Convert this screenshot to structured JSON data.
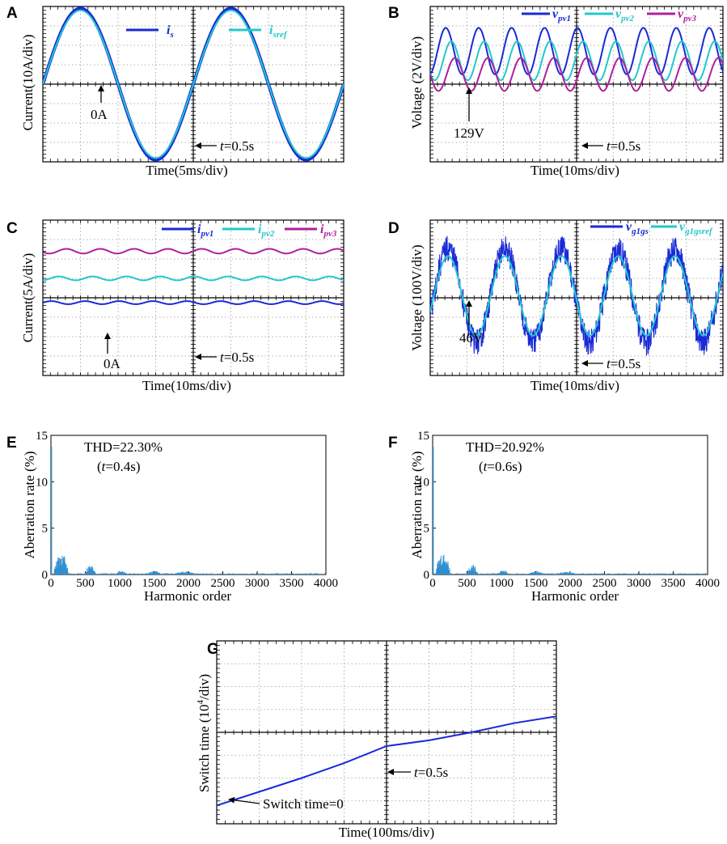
{
  "panel_labels": {
    "a": "A",
    "b": "B",
    "c": "C",
    "d": "D",
    "e": "E",
    "f": "F",
    "g": "G"
  },
  "colors": {
    "dark_blue": "#1a2ad6",
    "cyan": "#22c8cc",
    "magenta": "#b0209c",
    "bar_blue": "#2f8fd0",
    "fill_blue": "#5b9fe0"
  },
  "chart_data": [
    {
      "id": "A",
      "type": "line",
      "title": "",
      "xlabel": "Time(5ms/div)",
      "ylabel": "Current(10A/div)",
      "divisions_x": 8,
      "divisions_y": 8,
      "x_unit": "div",
      "y_unit": "div",
      "series": [
        {
          "name": "i_s",
          "legend_main": "i",
          "legend_sub": "s",
          "color": "#1a2ad6",
          "waveform": "sine",
          "amplitude_div": 3.9,
          "offset_div": 0,
          "period_div": 4,
          "phase_div": 0
        },
        {
          "name": "i_sref",
          "legend_main": "i",
          "legend_sub": "sref",
          "color": "#22c8cc",
          "waveform": "sine",
          "amplitude_div": 3.8,
          "offset_div": 0,
          "period_div": 4,
          "phase_div": 0
        }
      ],
      "annotations": [
        {
          "text": "0A",
          "kind": "zero_marker"
        },
        {
          "text_prefix": "t",
          "text_suffix": "=0.5s",
          "kind": "time_marker"
        }
      ]
    },
    {
      "id": "B",
      "type": "line",
      "xlabel": "Time(10ms/div)",
      "ylabel": "Voltage (2V/div)",
      "divisions_x": 8,
      "divisions_y": 8,
      "series": [
        {
          "name": "v_pv1",
          "legend_main": "v",
          "legend_sub": "pv1",
          "color": "#1a2ad6",
          "waveform": "sine",
          "amplitude_div": 1.2,
          "offset_div": 1.7,
          "period_div": 0.9,
          "phase_div": 0.2
        },
        {
          "name": "v_pv2",
          "legend_main": "v",
          "legend_sub": "pv2",
          "color": "#22c8cc",
          "waveform": "sine",
          "amplitude_div": 1.0,
          "offset_div": 1.2,
          "period_div": 0.9,
          "phase_div": 0.35
        },
        {
          "name": "v_pv3",
          "legend_main": "v",
          "legend_sub": "pv3",
          "color": "#b0209c",
          "waveform": "sine",
          "amplitude_div": 0.85,
          "offset_div": 0.5,
          "period_div": 0.9,
          "phase_div": 0.45
        }
      ],
      "annotations": [
        {
          "text": "129V",
          "kind": "zero_marker"
        },
        {
          "text_prefix": "t",
          "text_suffix": "=0.5s",
          "kind": "time_marker"
        }
      ]
    },
    {
      "id": "C",
      "type": "line",
      "xlabel": "Time(10ms/div)",
      "ylabel": "Current(5A/div)",
      "divisions_x": 8,
      "divisions_y": 8,
      "series": [
        {
          "name": "i_pv1",
          "legend_main": "i",
          "legend_sub": "pv1",
          "color": "#1a2ad6",
          "waveform": "sine",
          "amplitude_div": 0.08,
          "offset_div": -0.25,
          "period_div": 0.9,
          "phase_div": 0
        },
        {
          "name": "i_pv2",
          "legend_main": "i",
          "legend_sub": "pv2",
          "color": "#22c8cc",
          "waveform": "sine",
          "amplitude_div": 0.1,
          "offset_div": 1.0,
          "period_div": 0.9,
          "phase_div": 0.2
        },
        {
          "name": "i_pv3",
          "legend_main": "i",
          "legend_sub": "pv3",
          "color": "#b0209c",
          "waveform": "sine",
          "amplitude_div": 0.12,
          "offset_div": 2.4,
          "period_div": 0.9,
          "phase_div": 0.4
        }
      ],
      "annotations": [
        {
          "text": "0A",
          "kind": "zero_marker"
        },
        {
          "text_prefix": "t",
          "text_suffix": "=0.5s",
          "kind": "time_marker"
        }
      ]
    },
    {
      "id": "D",
      "type": "line",
      "xlabel": "Time(10ms/div)",
      "ylabel": "Voltage (100V/div)",
      "divisions_x": 8,
      "divisions_y": 8,
      "series": [
        {
          "name": "v_g1gs",
          "legend_main": "v",
          "legend_sub": "g1gs",
          "color": "#1a2ad6",
          "waveform": "noisy_sine",
          "amplitude_div": 2.4,
          "offset_div": 0.1,
          "period_div": 1.55,
          "phase_div": 0.1
        },
        {
          "name": "v_g1gsref",
          "legend_main": "v",
          "legend_sub": "g1gsref",
          "color": "#22c8cc",
          "waveform": "sine",
          "amplitude_div": 2.05,
          "offset_div": 0.1,
          "period_div": 1.55,
          "phase_div": 0.1
        }
      ],
      "annotations": [
        {
          "text": "46V",
          "kind": "zero_marker"
        },
        {
          "text_prefix": "t",
          "text_suffix": "=0.5s",
          "kind": "time_marker"
        }
      ]
    },
    {
      "id": "E",
      "type": "bar",
      "xlabel": "Harmonic order",
      "ylabel": "Aberration rate (%)",
      "xlim": [
        0,
        4000
      ],
      "ylim": [
        0,
        15
      ],
      "xticks": [
        0,
        500,
        1000,
        1500,
        2000,
        2500,
        3000,
        3500,
        4000
      ],
      "yticks": [
        0,
        5,
        10,
        15
      ],
      "fundamental_value": 13.8,
      "spectrum": [
        {
          "range": [
            50,
            250
          ],
          "peak": 2.3
        },
        {
          "range": [
            500,
            650
          ],
          "peak": 1.1
        },
        {
          "range": [
            950,
            1100
          ],
          "peak": 0.5
        },
        {
          "range": [
            1400,
            1600
          ],
          "peak": 0.4
        },
        {
          "range": [
            1800,
            2100
          ],
          "peak": 0.35
        }
      ],
      "thd_text": "THD=22.30%",
      "time_note_prefix": "(",
      "time_note_t": "t",
      "time_note_suffix": "=0.4s)"
    },
    {
      "id": "F",
      "type": "bar",
      "xlabel": "Harmonic order",
      "ylabel": "Aberration rate (%)",
      "xlim": [
        0,
        4000
      ],
      "ylim": [
        0,
        15
      ],
      "xticks": [
        0,
        500,
        1000,
        1500,
        2000,
        2500,
        3000,
        3500,
        4000
      ],
      "yticks": [
        0,
        5,
        10,
        15
      ],
      "fundamental_value": 13.8,
      "spectrum": [
        {
          "range": [
            50,
            250
          ],
          "peak": 2.4
        },
        {
          "range": [
            500,
            650
          ],
          "peak": 1.1
        },
        {
          "range": [
            950,
            1100
          ],
          "peak": 0.5
        },
        {
          "range": [
            1400,
            1600
          ],
          "peak": 0.4
        },
        {
          "range": [
            1800,
            2100
          ],
          "peak": 0.3
        }
      ],
      "thd_text": "THD=20.92%",
      "time_note_prefix": "(",
      "time_note_t": "t",
      "time_note_suffix": "=0.6s)"
    },
    {
      "id": "G",
      "type": "line",
      "xlabel": "Time(100ms/div)",
      "ylabel_prefix": "Switch time (10",
      "ylabel_exp": "4",
      "ylabel_suffix": "/div)",
      "divisions_x": 8,
      "divisions_y": 8,
      "series": [
        {
          "name": "switch_time",
          "color": "#1a2ad6",
          "points_div": [
            [
              0,
              -3.2
            ],
            [
              1,
              -2.6
            ],
            [
              2,
              -2.0
            ],
            [
              3,
              -1.35
            ],
            [
              4,
              -0.6
            ],
            [
              5,
              -0.35
            ],
            [
              6,
              0.0
            ],
            [
              7,
              0.4
            ],
            [
              8,
              0.7
            ]
          ]
        }
      ],
      "annotations": [
        {
          "text": "Switch time=0",
          "kind": "zero_marker"
        },
        {
          "text_prefix": "t",
          "text_suffix": "=0.5s",
          "kind": "time_marker"
        }
      ]
    }
  ]
}
